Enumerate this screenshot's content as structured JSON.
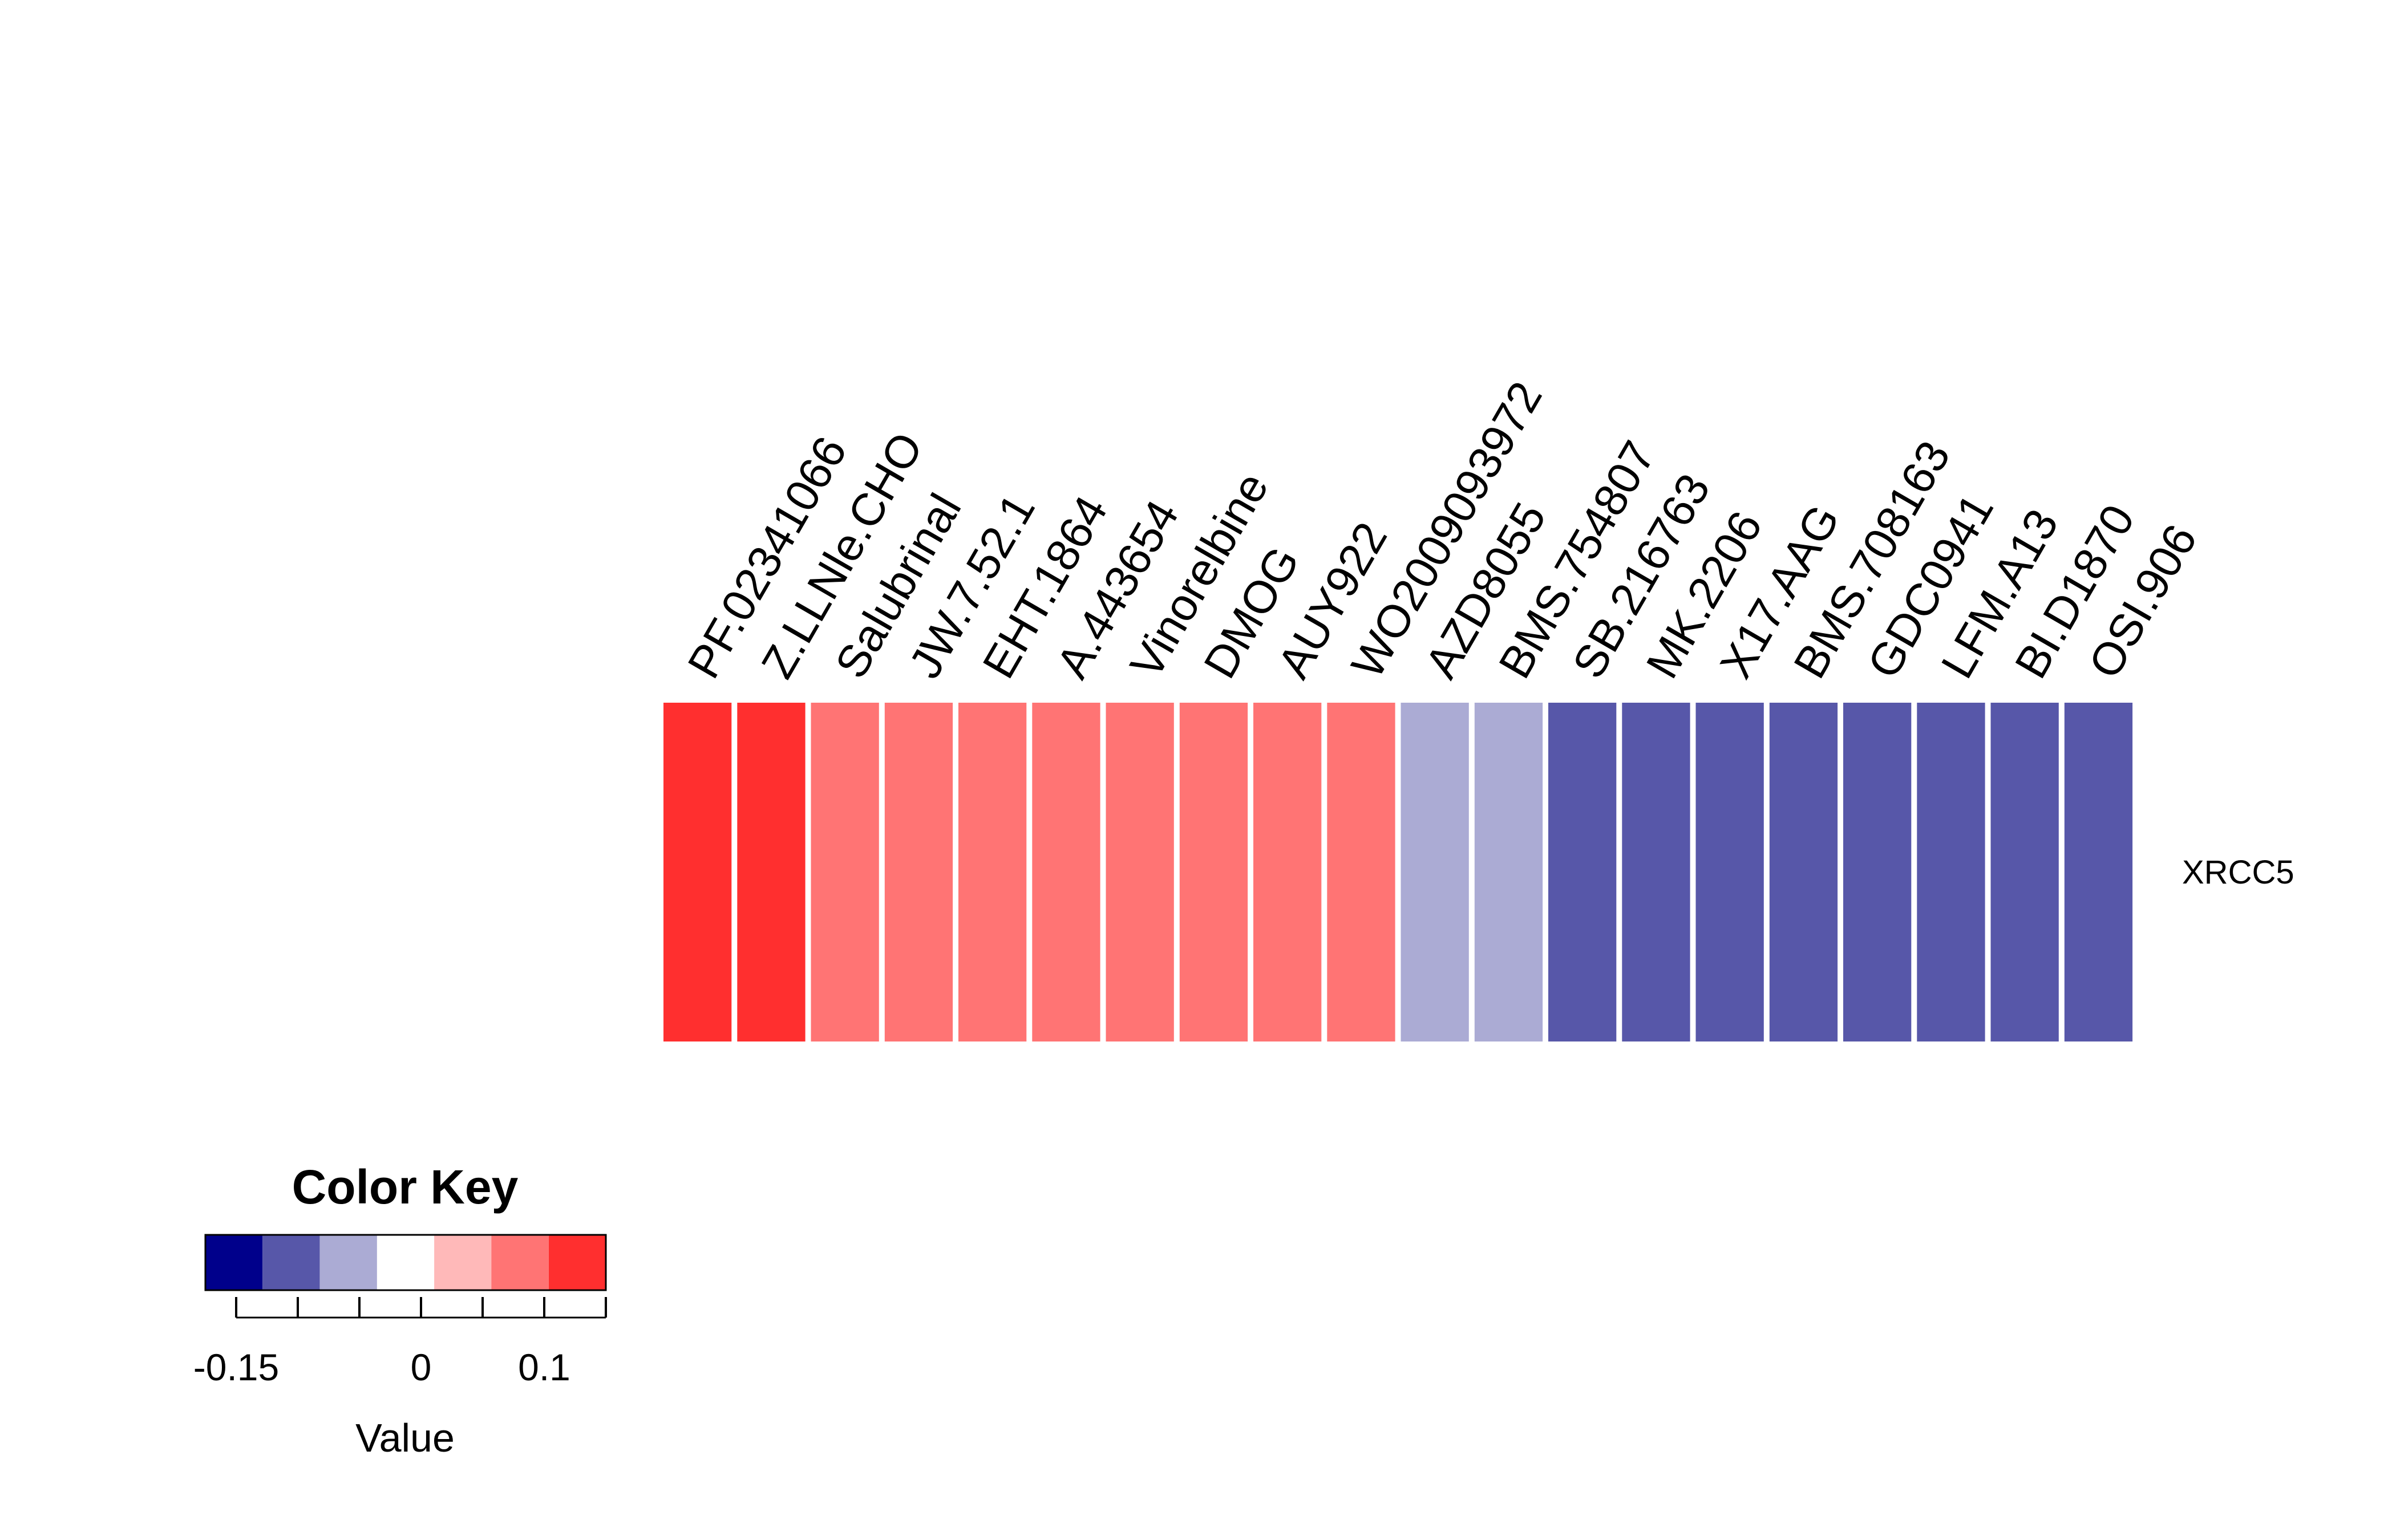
{
  "chart_data": {
    "type": "heatmap",
    "rows": [
      "XRCC5"
    ],
    "columns": [
      "PF.02341066",
      "Z.LLNle.CHO",
      "Salubrinal",
      "JW.7.52.1",
      "EHT.1864",
      "A.443654",
      "Vinorelbine",
      "DMOG",
      "AUY922",
      "WO2009093972",
      "AZD8055",
      "BMS.754807",
      "SB.216763",
      "MK.2206",
      "X17.AAG",
      "BMS.708163",
      "GDC0941",
      "LFM.A13",
      "BI.D1870",
      "OSI.906"
    ],
    "values": [
      [
        0.13,
        0.13,
        0.08,
        0.08,
        0.08,
        0.08,
        0.08,
        0.08,
        0.08,
        0.08,
        -0.07,
        -0.07,
        -0.12,
        -0.12,
        -0.12,
        -0.12,
        -0.12,
        -0.12,
        -0.12,
        -0.12
      ]
    ],
    "color_key": {
      "title": "Color Key",
      "xlabel": "Value",
      "range": [
        -0.175,
        0.15
      ],
      "breaks": [
        -0.175,
        -0.1286,
        -0.0821,
        -0.0357,
        0.0107,
        0.0571,
        0.1036,
        0.15
      ],
      "colors": [
        "#00008B",
        "#5757A9",
        "#ABABD4",
        "#FFFFFF",
        "#FFB9B9",
        "#FF7474",
        "#FF2F2F"
      ],
      "tick_values": [
        -0.15,
        -0.1,
        -0.05,
        0,
        0.05,
        0.1,
        0.15
      ],
      "tick_labels": [
        "-0.15",
        "",
        "",
        "0",
        "",
        "0.1",
        ""
      ]
    }
  }
}
